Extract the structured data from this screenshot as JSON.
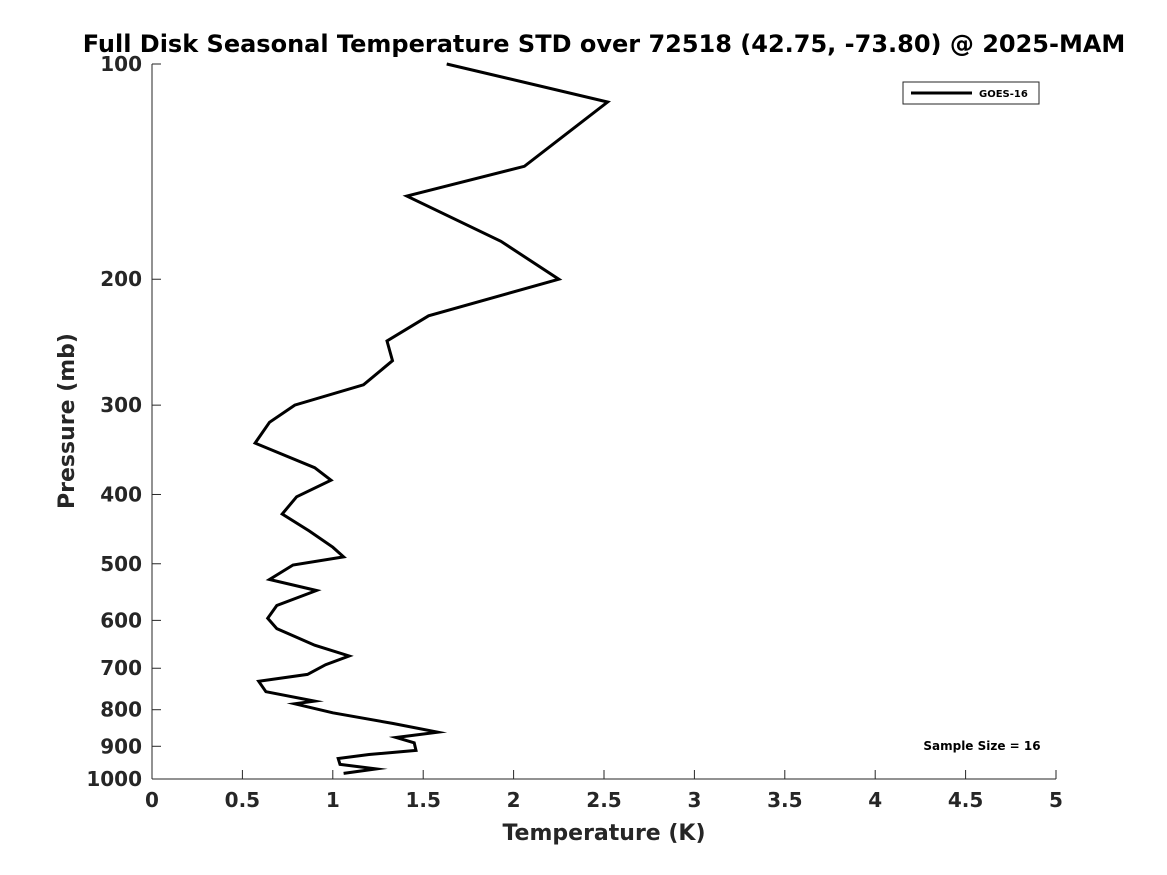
{
  "chart_data": {
    "type": "line",
    "title": "Full Disk Seasonal Temperature STD over 72518 (42.75, -73.80) @ 2025-MAM",
    "xlabel": "Temperature (K)",
    "ylabel": "Pressure (mb)",
    "xlim": [
      0,
      5
    ],
    "ylim": [
      100,
      1000
    ],
    "y_scale": "log",
    "y_reversed": true,
    "x_ticks": [
      "0",
      "0.5",
      "1",
      "1.5",
      "2",
      "2.5",
      "3",
      "3.5",
      "4",
      "4.5",
      "5"
    ],
    "y_ticks": [
      "100",
      "200",
      "300",
      "400",
      "500",
      "600",
      "700",
      "800",
      "900",
      "1000"
    ],
    "grid": false,
    "legend_position": "top-right",
    "series": [
      {
        "name": "GOES-16",
        "color": "#000000",
        "x": [
          1.63,
          2.52,
          2.06,
          1.41,
          1.93,
          2.25,
          1.53,
          1.3,
          1.33,
          1.17,
          0.79,
          0.65,
          0.57,
          0.9,
          0.99,
          0.8,
          0.72,
          0.87,
          1.0,
          1.06,
          0.78,
          0.65,
          0.91,
          0.69,
          0.64,
          0.69,
          0.9,
          1.09,
          0.96,
          0.86,
          0.59,
          0.63,
          0.9,
          0.79,
          1.0,
          1.33,
          1.58,
          1.35,
          1.45,
          1.46,
          1.2,
          1.03,
          1.04,
          1.24,
          1.06
        ],
        "y": [
          100,
          113,
          139,
          153,
          177,
          200,
          225,
          244,
          260,
          281,
          300,
          317,
          339,
          367,
          382,
          403,
          426,
          450,
          474,
          489,
          502,
          526,
          545,
          572,
          596,
          616,
          650,
          673,
          692,
          714,
          730,
          755,
          778,
          785,
          808,
          836,
          860,
          875,
          890,
          912,
          924,
          936,
          954,
          968,
          982
        ]
      }
    ],
    "annotations": [
      "Sample Size = 16"
    ]
  }
}
